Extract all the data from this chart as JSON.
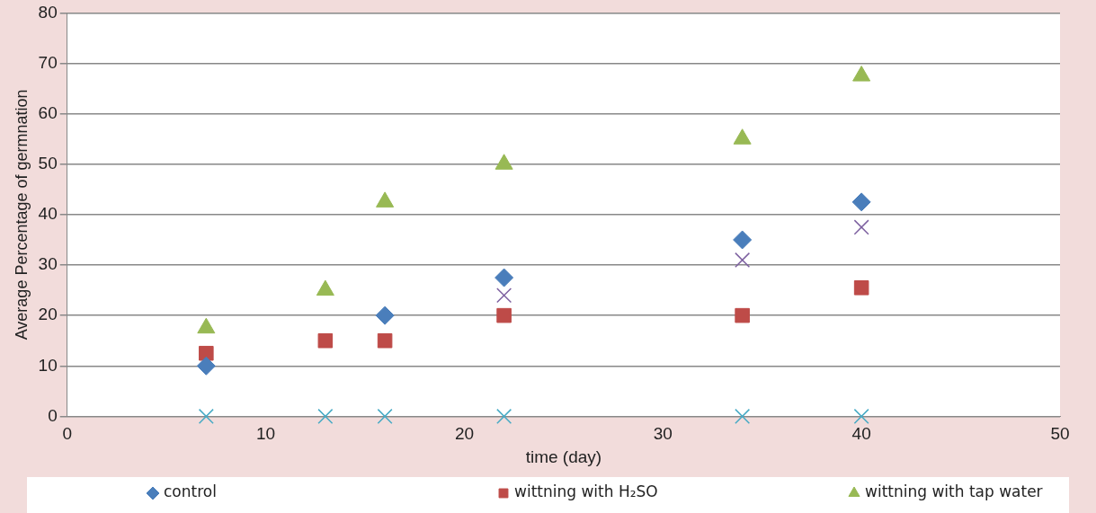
{
  "chart_data": {
    "type": "scatter",
    "xlabel": "time (day)",
    "ylabel": "Average Percentage of germnation",
    "x": [
      7,
      13,
      16,
      22,
      34,
      40
    ],
    "series": [
      {
        "name": "control",
        "color": "#4a7ebb",
        "marker": "diamond",
        "values": [
          10,
          null,
          20,
          27.5,
          35,
          42.5
        ]
      },
      {
        "name": "wittning with H₂SO",
        "color": "#be4b48",
        "marker": "square",
        "values": [
          12.5,
          15,
          15,
          20,
          20,
          25.5
        ]
      },
      {
        "name": "wittning with tap water",
        "color": "#98b954",
        "marker": "triangle",
        "values": [
          17.5,
          25,
          42.5,
          50,
          55,
          67.5
        ]
      },
      {
        "color": "#7d60a0",
        "marker": "cross",
        "values": [
          null,
          null,
          null,
          24,
          31,
          37.5
        ]
      },
      {
        "color": "#46aac5",
        "marker": "cross",
        "values": [
          0,
          0,
          0,
          0,
          0,
          0
        ]
      }
    ],
    "xlim": [
      0,
      50
    ],
    "xticks": [
      0,
      10,
      20,
      30,
      40,
      50
    ],
    "ylim": [
      0,
      80
    ],
    "yticks": [
      0,
      10,
      20,
      30,
      40,
      50,
      60,
      70,
      80
    ],
    "grid": "y",
    "legend": "bottom"
  }
}
